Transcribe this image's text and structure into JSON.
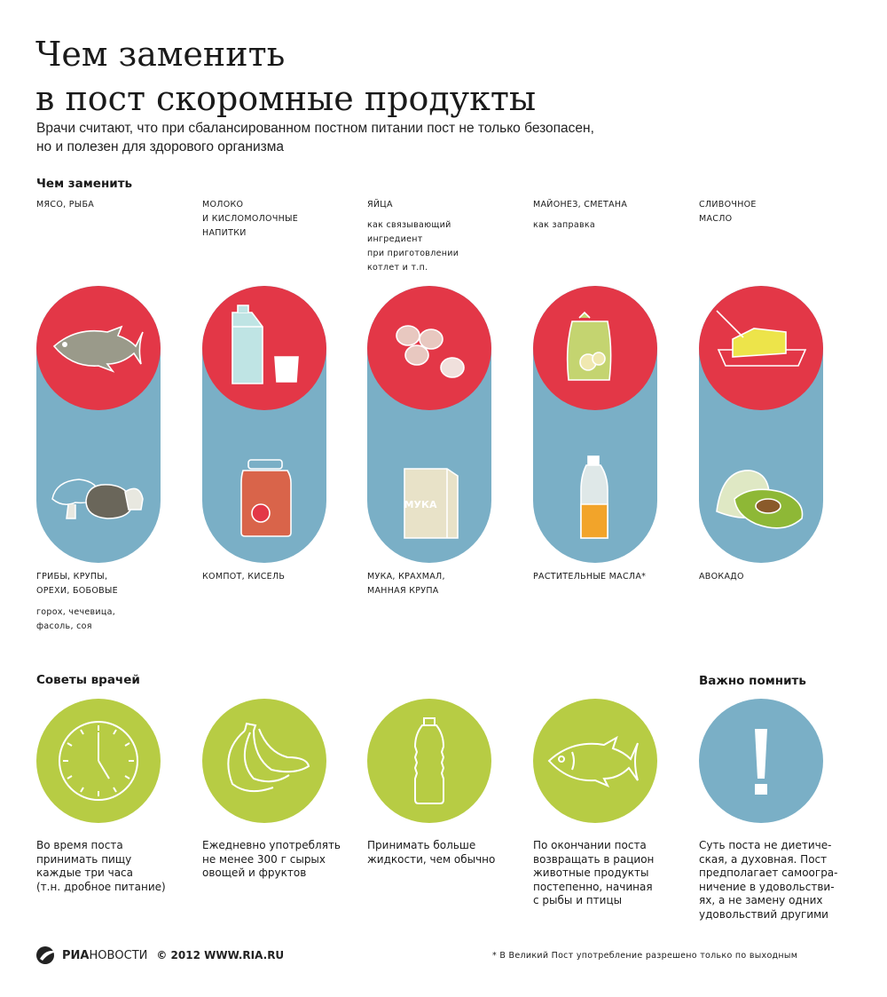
{
  "header": {
    "title_lines": [
      "Чем заменить",
      "в пост скоромные продукты"
    ],
    "subtitle_lines": [
      "Врачи считают, что при сбалансированном постном питании пост не только безопасен,",
      "но и полезен для здорового организма"
    ]
  },
  "replace_section": {
    "heading": "Чем заменить",
    "columns": [
      {
        "product_lines": [
          "МЯСО, РЫБА"
        ],
        "note_lines": [],
        "substitute_lines": [
          "ГРИБЫ, КРУПЫ,",
          "ОРЕХИ, БОБОВЫЕ"
        ],
        "substitute_note_lines": [
          "горох, чечевица,",
          "фасоль, соя"
        ],
        "top_icon": "fish-icon",
        "bottom_icon": "mushrooms-icon"
      },
      {
        "product_lines": [
          "МОЛОКО",
          "И КИСЛОМОЛОЧНЫЕ",
          "НАПИТКИ"
        ],
        "note_lines": [],
        "substitute_lines": [
          "КОМПОТ, КИСЕЛЬ"
        ],
        "substitute_note_lines": [],
        "top_icon": "milk-carton-icon",
        "bottom_icon": "compote-jar-icon"
      },
      {
        "product_lines": [
          "ЯЙЦА"
        ],
        "note_lines": [
          "как связывающий",
          "ингредиент",
          "при приготовлении",
          "котлет и т.п."
        ],
        "substitute_lines": [
          "МУКА, КРАХМАЛ,",
          "МАННАЯ КРУПА"
        ],
        "substitute_note_lines": [],
        "top_icon": "eggs-icon",
        "bottom_icon": "flour-bag-icon",
        "bag_label": "МУКА"
      },
      {
        "product_lines": [
          "МАЙОНЕЗ, СМЕТАНА"
        ],
        "note_lines": [
          "как заправка"
        ],
        "substitute_lines": [
          "РАСТИТЕЛЬНЫЕ МАСЛА*"
        ],
        "substitute_note_lines": [],
        "top_icon": "mayonnaise-pack-icon",
        "bottom_icon": "oil-bottle-icon"
      },
      {
        "product_lines": [
          "СЛИВОЧНОЕ",
          "МАСЛО"
        ],
        "note_lines": [],
        "substitute_lines": [
          "АВОКАДО"
        ],
        "substitute_note_lines": [],
        "top_icon": "butter-dish-icon",
        "bottom_icon": "avocado-icon"
      }
    ]
  },
  "tips_section": {
    "heading": "Советы врачей",
    "reminder_heading": "Важно помнить",
    "tips": [
      {
        "icon": "clock-icon",
        "lines": [
          "Во время поста",
          "принимать пищу",
          "каждые три часа",
          "(т.н. дробное питание)"
        ]
      },
      {
        "icon": "bananas-icon",
        "lines": [
          "Ежедневно употреблять",
          "не менее 300 г сырых",
          "овощей и фруктов"
        ]
      },
      {
        "icon": "water-bottle-icon",
        "lines": [
          "Принимать больше",
          "жидкости, чем обычно"
        ]
      },
      {
        "icon": "fish-icon",
        "lines": [
          "По окончании поста",
          "возвращать в рацион",
          "животные продукты",
          "постепенно, начиная",
          "с рыбы и птицы"
        ]
      },
      {
        "icon": "exclamation-icon",
        "lines": [
          "Суть поста не диетиче-",
          "ская, а духовная. Пост",
          "предполагает самоогра-",
          "ничение в удовольстви-",
          "ях, а не замену одних",
          "удовольствий другими"
        ]
      }
    ]
  },
  "footer": {
    "logo_part1": "РИА",
    "logo_part2": "НОВОСТИ",
    "copyright": "© 2012 WWW.RIA.RU",
    "footnote": "* В Великий Пост употребление разрешено только по выходным"
  },
  "colors": {
    "red": "#e33747",
    "blue": "#7aafc6",
    "green": "#b7cc44",
    "text": "#1a1a1a"
  }
}
